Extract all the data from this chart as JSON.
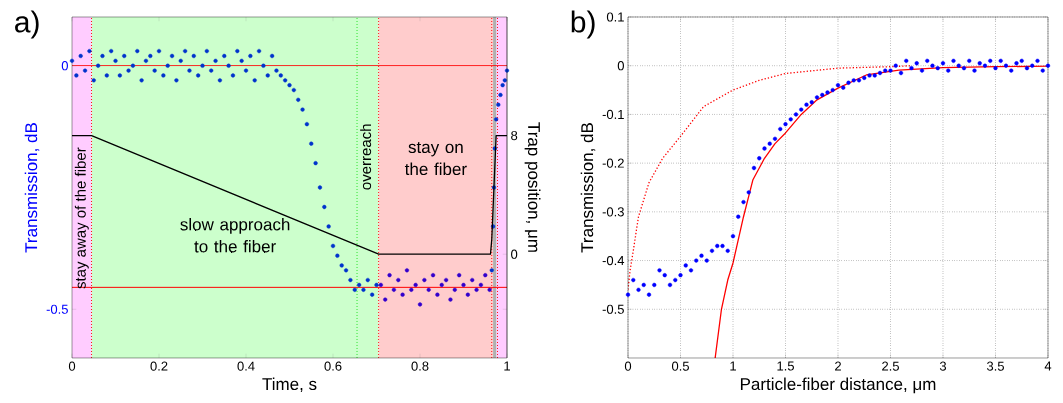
{
  "chart_data": [
    {
      "type": "scatter",
      "title": "a)",
      "xlabel": "Time, s",
      "ylabel": "Transmission, dB",
      "y2label": "Trap position, μm",
      "xlim": [
        0,
        1
      ],
      "ylim": [
        -0.6,
        0.1
      ],
      "y2lim": [
        -7,
        16
      ],
      "xticks": [
        0,
        0.2,
        0.4,
        0.6,
        0.8,
        1
      ],
      "yticks": [
        -0.5,
        0
      ],
      "y2ticks": [
        0,
        8
      ],
      "bands": [
        {
          "axis": "x",
          "from": 0,
          "to": 0.045,
          "color": "#ffccff",
          "label": "stay away of the fiber"
        },
        {
          "axis": "x",
          "from": 0.045,
          "to": 0.705,
          "color": "#ccffcc",
          "label": "slow approach to the fiber"
        },
        {
          "axis": "x",
          "from": 0.705,
          "to": 0.968,
          "color": "#ffcccc",
          "label": "stay on the fiber"
        },
        {
          "axis": "x",
          "from": 0.968,
          "to": 0.976,
          "color": "#b0b0b0"
        },
        {
          "axis": "x",
          "from": 0.976,
          "to": 1,
          "color": "#ffccff"
        }
      ],
      "ref_lines": [
        {
          "axis": "y",
          "value": 0,
          "color": "#ff0000",
          "line_style": "solid"
        },
        {
          "axis": "y",
          "value": -0.455,
          "color": "#ff0000",
          "line_style": "solid"
        },
        {
          "axis": "x",
          "value": 0.045,
          "color": "#ff0000",
          "line_style": "dotted"
        },
        {
          "axis": "x",
          "value": 0.655,
          "color": "#00dd00",
          "line_style": "dotted",
          "label": "overreach"
        },
        {
          "axis": "x",
          "value": 0.705,
          "color": "#ff0000",
          "line_style": "dotted"
        },
        {
          "axis": "x",
          "value": 0.965,
          "color": "#ff0000",
          "line_style": "dotted"
        },
        {
          "axis": "x",
          "value": 0.978,
          "color": "#ff0000",
          "line_style": "dotted"
        }
      ],
      "series": [
        {
          "color": "#0033cc",
          "marker": "circle",
          "x": [
            0,
            0.01,
            0.02,
            0.03,
            0.04,
            0.05,
            0.06,
            0.07,
            0.08,
            0.09,
            0.1,
            0.11,
            0.12,
            0.13,
            0.14,
            0.15,
            0.16,
            0.17,
            0.18,
            0.19,
            0.2,
            0.21,
            0.22,
            0.23,
            0.24,
            0.25,
            0.26,
            0.27,
            0.28,
            0.29,
            0.3,
            0.31,
            0.32,
            0.33,
            0.34,
            0.35,
            0.36,
            0.37,
            0.38,
            0.39,
            0.4,
            0.41,
            0.42,
            0.43,
            0.44,
            0.45,
            0.46,
            0.47,
            0.48,
            0.49,
            0.5,
            0.51,
            0.52,
            0.53,
            0.54,
            0.55,
            0.56,
            0.57,
            0.58,
            0.59,
            0.6,
            0.61,
            0.62,
            0.63,
            0.64,
            0.65,
            0.66,
            0.67,
            0.68,
            0.69,
            0.7,
            0.965,
            0.968,
            0.97,
            0.972,
            0.975,
            0.98,
            0.985,
            0.99,
            0.995,
            1.0
          ],
          "values": [
            0.01,
            -0.02,
            0.02,
            -0.01,
            0.03,
            -0.03,
            0.0,
            0.02,
            -0.02,
            0.03,
            0.01,
            -0.02,
            0.02,
            -0.01,
            0.0,
            0.03,
            -0.03,
            0.01,
            0.02,
            -0.01,
            0.03,
            -0.02,
            0.0,
            0.02,
            -0.03,
            0.01,
            0.03,
            -0.01,
            0.02,
            -0.02,
            0.0,
            0.03,
            -0.01,
            0.01,
            -0.03,
            0.02,
            0.0,
            -0.02,
            0.03,
            0.01,
            -0.01,
            0.02,
            -0.03,
            0.03,
            0.0,
            -0.02,
            0.02,
            -0.01,
            -0.02,
            -0.03,
            -0.04,
            -0.05,
            -0.07,
            -0.09,
            -0.12,
            -0.16,
            -0.2,
            -0.25,
            -0.29,
            -0.33,
            -0.37,
            -0.39,
            -0.41,
            -0.42,
            -0.44,
            -0.46,
            -0.45,
            -0.46,
            -0.44,
            -0.47,
            -0.45,
            -0.42,
            -0.33,
            -0.25,
            -0.17,
            -0.11,
            -0.08,
            -0.06,
            -0.04,
            -0.03,
            -0.01
          ]
        },
        {
          "color": "#3300cc",
          "marker": "circle",
          "x": [
            0.71,
            0.72,
            0.73,
            0.74,
            0.75,
            0.76,
            0.77,
            0.78,
            0.79,
            0.8,
            0.81,
            0.82,
            0.83,
            0.84,
            0.85,
            0.86,
            0.87,
            0.88,
            0.89,
            0.9,
            0.91,
            0.92,
            0.93,
            0.94,
            0.95,
            0.96
          ],
          "values": [
            -0.45,
            -0.48,
            -0.43,
            -0.46,
            -0.44,
            -0.47,
            -0.42,
            -0.46,
            -0.45,
            -0.49,
            -0.44,
            -0.46,
            -0.43,
            -0.47,
            -0.45,
            -0.44,
            -0.48,
            -0.46,
            -0.43,
            -0.45,
            -0.47,
            -0.44,
            -0.46,
            -0.45,
            -0.43,
            -0.46
          ]
        },
        {
          "type": "line",
          "axis": "y2",
          "marker": "none",
          "color": "#000000",
          "line_style": "solid",
          "x": [
            0,
            0.045,
            0.705,
            0.962,
            0.965,
            0.975,
            1
          ],
          "values": [
            8,
            8,
            0,
            0,
            1,
            8,
            8
          ]
        }
      ]
    },
    {
      "type": "scatter",
      "title": "b)",
      "xlabel": "Particle-fiber distance, μm",
      "ylabel": "Transmission, dB",
      "grid": true,
      "xlim": [
        0,
        4
      ],
      "ylim": [
        -0.6,
        0.1
      ],
      "xticks": [
        0,
        0.5,
        1,
        1.5,
        2,
        2.5,
        3,
        3.5,
        4
      ],
      "yticks": [
        -0.5,
        -0.4,
        -0.3,
        -0.2,
        -0.1,
        0,
        0.1
      ],
      "series": [
        {
          "color": "#0000ff",
          "marker": "circle",
          "x": [
            0,
            0.05,
            0.1,
            0.15,
            0.2,
            0.25,
            0.3,
            0.35,
            0.4,
            0.45,
            0.5,
            0.55,
            0.6,
            0.65,
            0.7,
            0.75,
            0.8,
            0.85,
            0.9,
            0.95,
            1.0,
            1.05,
            1.1,
            1.15,
            1.2,
            1.25,
            1.3,
            1.35,
            1.4,
            1.45,
            1.5,
            1.55,
            1.6,
            1.65,
            1.7,
            1.75,
            1.8,
            1.85,
            1.9,
            1.95,
            2.0,
            2.05,
            2.1,
            2.15,
            2.2,
            2.25,
            2.3,
            2.35,
            2.4,
            2.45,
            2.5,
            2.55,
            2.6,
            2.65,
            2.7,
            2.75,
            2.8,
            2.85,
            2.9,
            2.95,
            3.0,
            3.05,
            3.1,
            3.15,
            3.2,
            3.25,
            3.3,
            3.35,
            3.4,
            3.45,
            3.5,
            3.55,
            3.6,
            3.65,
            3.7,
            3.75,
            3.8,
            3.85,
            3.9,
            3.95,
            4.0
          ],
          "values": [
            -0.47,
            -0.44,
            -0.46,
            -0.45,
            -0.47,
            -0.45,
            -0.42,
            -0.43,
            -0.45,
            -0.44,
            -0.43,
            -0.41,
            -0.42,
            -0.4,
            -0.39,
            -0.4,
            -0.38,
            -0.37,
            -0.37,
            -0.38,
            -0.35,
            -0.31,
            -0.28,
            -0.26,
            -0.21,
            -0.19,
            -0.17,
            -0.16,
            -0.15,
            -0.13,
            -0.12,
            -0.11,
            -0.1,
            -0.09,
            -0.08,
            -0.075,
            -0.065,
            -0.06,
            -0.055,
            -0.05,
            -0.04,
            -0.045,
            -0.035,
            -0.03,
            -0.03,
            -0.025,
            -0.02,
            -0.02,
            -0.015,
            -0.01,
            -0.01,
            0.0,
            -0.015,
            0.01,
            -0.005,
            0.005,
            -0.01,
            0.01,
            0.0,
            -0.005,
            0.005,
            -0.01,
            0.01,
            0.0,
            -0.005,
            0.01,
            -0.01,
            0.005,
            0.0,
            0.01,
            -0.005,
            0.01,
            0.0,
            -0.01,
            0.005,
            0.01,
            -0.005,
            0.0,
            0.01,
            -0.01,
            0.0
          ]
        },
        {
          "type": "line",
          "marker": "none",
          "color": "#ff0000",
          "line_style": "solid",
          "x": [
            0.83,
            0.89,
            0.95,
            1.0,
            1.1,
            1.19,
            1.3,
            1.4,
            1.5,
            1.65,
            1.8,
            2.0,
            2.27,
            2.58,
            3.0,
            3.5,
            4.0
          ],
          "values": [
            -0.6,
            -0.5,
            -0.44,
            -0.405,
            -0.31,
            -0.234,
            -0.19,
            -0.16,
            -0.138,
            -0.1,
            -0.07,
            -0.046,
            -0.019,
            -0.009,
            -0.004,
            -0.002,
            -0.001
          ]
        },
        {
          "type": "line",
          "marker": "none",
          "color": "#ff0000",
          "line_style": "dotted",
          "x": [
            0,
            0.02,
            0.05,
            0.1,
            0.2,
            0.33,
            0.5,
            0.72,
            1.0,
            1.25,
            1.5,
            2.0,
            2.5,
            2.7
          ],
          "values": [
            -0.46,
            -0.42,
            -0.38,
            -0.31,
            -0.24,
            -0.19,
            -0.145,
            -0.084,
            -0.05,
            -0.03,
            -0.016,
            -0.005,
            -0.002,
            0.0
          ]
        }
      ]
    }
  ]
}
